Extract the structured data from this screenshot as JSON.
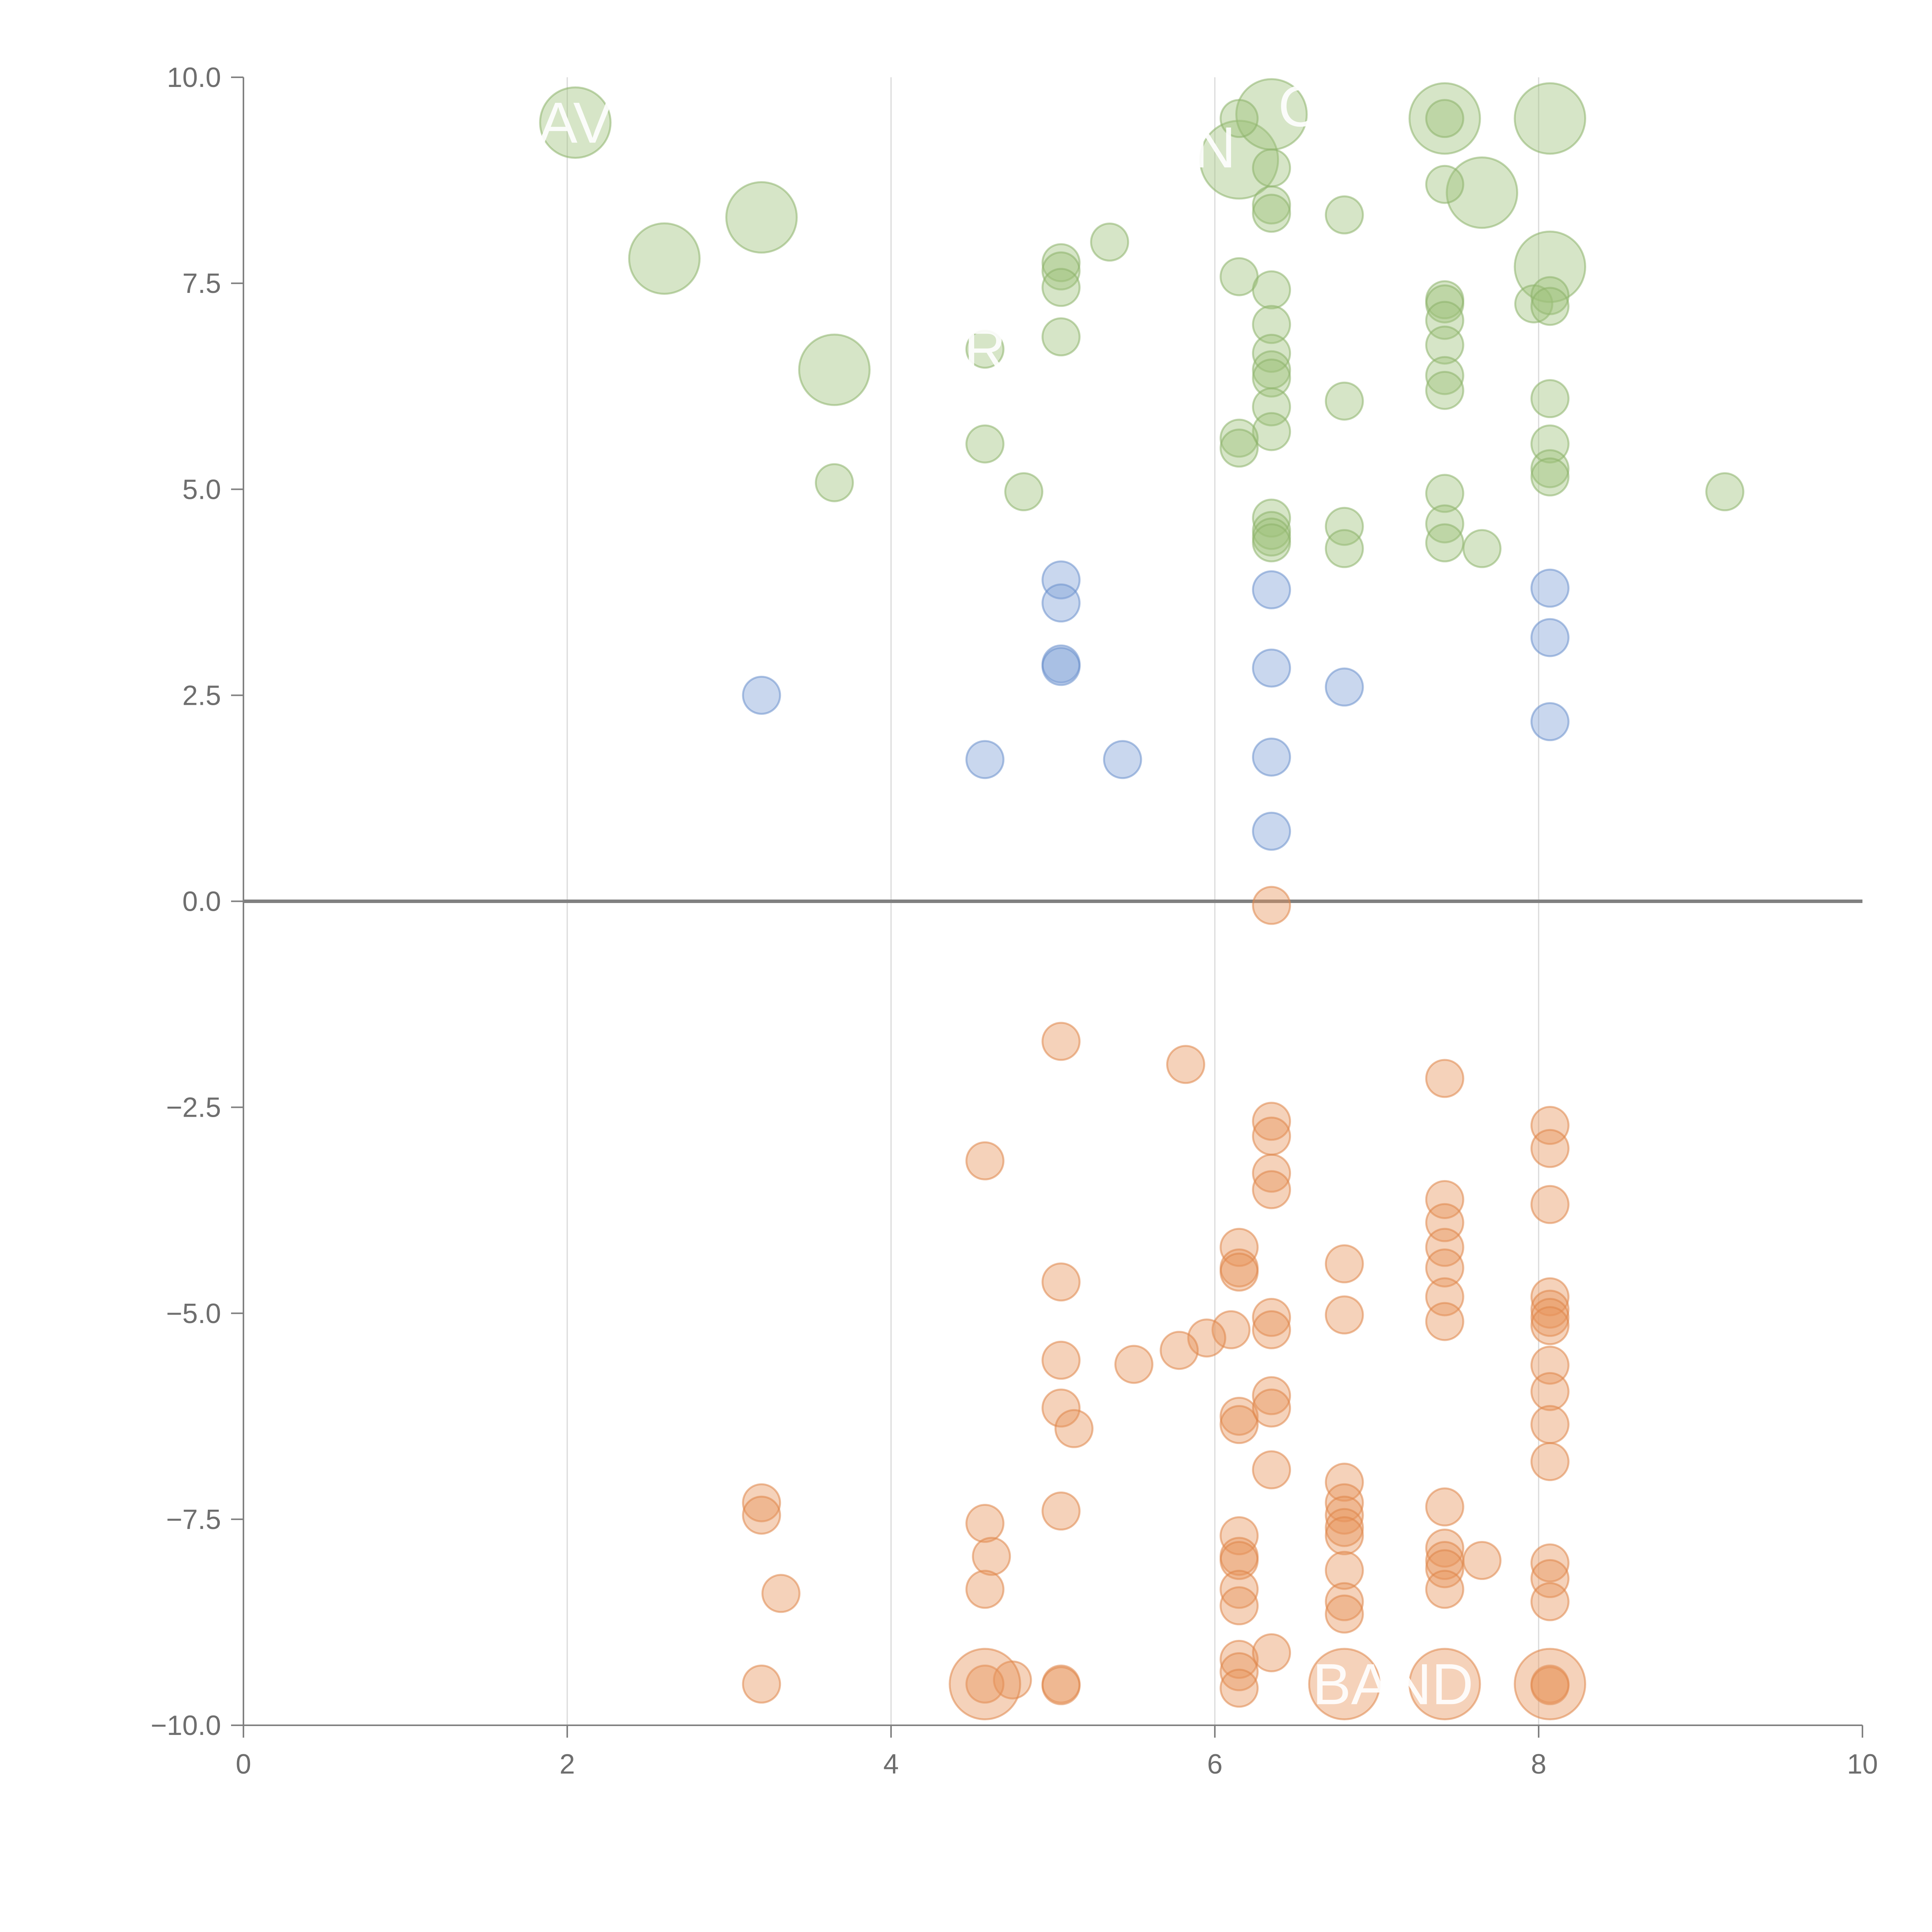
{
  "chart_data": {
    "type": "scatter",
    "title": "",
    "xlabel": "",
    "ylabel": "",
    "xlim": [
      0,
      10
    ],
    "ylim": [
      -10,
      10
    ],
    "x_ticks": [
      0,
      2,
      4,
      6,
      8,
      10
    ],
    "x_tick_labels": [
      "0",
      "2",
      "4",
      "6",
      "8",
      "10"
    ],
    "y_ticks": [
      -10,
      -7.5,
      -5,
      -2.5,
      0,
      2.5,
      5,
      7.5,
      10
    ],
    "y_tick_labels": [
      "−10.0",
      "−7.5",
      "−5.0",
      "−2.5",
      "0.0",
      "2.5",
      "5.0",
      "7.5",
      "10.0"
    ],
    "vertical_gridlines": [
      2,
      4,
      6,
      8
    ],
    "horizontal_reference_line": 0,
    "legend": "none",
    "series": [
      {
        "color": "#9ec27a",
        "stroke": "#8db369",
        "points": [
          [
            2.05,
            9.45,
            1.9
          ],
          [
            2.6,
            7.8,
            1.9
          ],
          [
            3.2,
            8.3,
            1.9
          ],
          [
            3.65,
            6.45,
            1.9
          ],
          [
            6.15,
            9.0,
            2.1
          ],
          [
            6.35,
            9.55,
            1.9
          ],
          [
            7.42,
            9.5,
            1.9
          ],
          [
            7.65,
            8.6,
            1.9
          ],
          [
            8.07,
            9.5,
            1.9
          ],
          [
            8.07,
            7.7,
            1.9
          ],
          [
            6.15,
            9.5,
            1
          ],
          [
            6.35,
            8.9,
            1
          ],
          [
            6.35,
            8.45,
            1
          ],
          [
            6.35,
            8.35,
            1
          ],
          [
            6.8,
            8.33,
            1
          ],
          [
            7.42,
            9.5,
            1
          ],
          [
            7.42,
            8.7,
            1
          ],
          [
            5.05,
            7.75,
            1
          ],
          [
            5.05,
            7.65,
            1
          ],
          [
            5.05,
            7.45,
            1
          ],
          [
            5.35,
            8.0,
            1
          ],
          [
            6.15,
            7.58,
            1
          ],
          [
            6.35,
            7.42,
            1
          ],
          [
            6.35,
            7.0,
            1
          ],
          [
            6.35,
            6.65,
            1
          ],
          [
            6.35,
            6.45,
            1
          ],
          [
            6.35,
            6.35,
            1
          ],
          [
            6.35,
            6.0,
            1
          ],
          [
            6.35,
            5.7,
            1
          ],
          [
            6.15,
            5.62,
            1
          ],
          [
            6.15,
            5.5,
            1
          ],
          [
            6.8,
            6.07,
            1
          ],
          [
            7.42,
            7.3,
            1
          ],
          [
            7.42,
            7.25,
            1
          ],
          [
            7.42,
            7.05,
            1
          ],
          [
            7.42,
            6.75,
            1
          ],
          [
            7.42,
            6.38,
            1
          ],
          [
            7.42,
            6.2,
            1
          ],
          [
            7.97,
            7.25,
            1
          ],
          [
            8.07,
            7.35,
            1
          ],
          [
            8.07,
            7.22,
            1
          ],
          [
            8.07,
            6.1,
            1
          ],
          [
            8.07,
            5.55,
            1
          ],
          [
            8.07,
            5.25,
            1
          ],
          [
            8.07,
            5.15,
            1
          ],
          [
            4.58,
            6.7,
            1
          ],
          [
            5.05,
            6.85,
            1
          ],
          [
            4.58,
            5.55,
            1
          ],
          [
            3.65,
            5.08,
            1
          ],
          [
            4.82,
            4.97,
            1
          ],
          [
            6.35,
            4.65,
            1
          ],
          [
            6.35,
            4.5,
            1
          ],
          [
            6.35,
            4.42,
            1
          ],
          [
            6.35,
            4.35,
            1
          ],
          [
            6.8,
            4.55,
            1
          ],
          [
            6.8,
            4.28,
            1
          ],
          [
            7.42,
            4.95,
            1
          ],
          [
            7.42,
            4.58,
            1
          ],
          [
            7.42,
            4.35,
            1
          ],
          [
            7.65,
            4.28,
            1
          ],
          [
            9.15,
            4.97,
            1
          ]
        ]
      },
      {
        "color": "#7fa0d6",
        "stroke": "#6a8fcc",
        "points": [
          [
            3.2,
            2.5,
            1
          ],
          [
            4.58,
            1.72,
            1
          ],
          [
            5.05,
            3.9,
            1
          ],
          [
            5.05,
            3.62,
            1
          ],
          [
            5.05,
            2.88,
            1
          ],
          [
            5.05,
            2.85,
            1
          ],
          [
            5.43,
            1.72,
            1
          ],
          [
            6.35,
            3.78,
            1
          ],
          [
            6.35,
            2.83,
            1
          ],
          [
            6.35,
            1.75,
            1
          ],
          [
            6.35,
            0.85,
            1
          ],
          [
            6.8,
            2.6,
            1
          ],
          [
            8.07,
            3.8,
            1
          ],
          [
            8.07,
            3.2,
            1
          ],
          [
            8.07,
            2.18,
            1
          ]
        ]
      },
      {
        "color": "#e8935a",
        "stroke": "#df8548",
        "points": [
          [
            6.35,
            -0.05,
            1
          ],
          [
            5.05,
            -1.7,
            1
          ],
          [
            5.82,
            -1.98,
            1
          ],
          [
            7.42,
            -2.15,
            1
          ],
          [
            4.58,
            -3.15,
            1
          ],
          [
            6.35,
            -2.67,
            1
          ],
          [
            6.35,
            -2.85,
            1
          ],
          [
            6.35,
            -3.3,
            1
          ],
          [
            6.35,
            -3.5,
            1
          ],
          [
            8.07,
            -2.72,
            1
          ],
          [
            8.07,
            -3.0,
            1
          ],
          [
            8.07,
            -3.68,
            1
          ],
          [
            7.42,
            -3.62,
            1
          ],
          [
            7.42,
            -3.9,
            1
          ],
          [
            7.42,
            -4.2,
            1
          ],
          [
            7.42,
            -4.45,
            1
          ],
          [
            7.42,
            -4.8,
            1
          ],
          [
            7.42,
            -5.1,
            1
          ],
          [
            6.15,
            -4.2,
            1
          ],
          [
            6.15,
            -4.45,
            1
          ],
          [
            6.15,
            -4.5,
            1
          ],
          [
            6.8,
            -4.4,
            1
          ],
          [
            6.8,
            -5.02,
            1
          ],
          [
            5.05,
            -4.62,
            1
          ],
          [
            6.35,
            -5.05,
            1
          ],
          [
            6.35,
            -5.2,
            1
          ],
          [
            6.1,
            -5.2,
            1
          ],
          [
            5.95,
            -5.3,
            1
          ],
          [
            5.78,
            -5.45,
            1
          ],
          [
            5.5,
            -5.62,
            1
          ],
          [
            5.05,
            -5.57,
            1
          ],
          [
            5.05,
            -6.15,
            1
          ],
          [
            5.13,
            -6.4,
            1
          ],
          [
            6.15,
            -6.25,
            1
          ],
          [
            6.15,
            -6.35,
            1
          ],
          [
            6.35,
            -6.0,
            1
          ],
          [
            6.35,
            -6.15,
            1
          ],
          [
            6.35,
            -6.9,
            1
          ],
          [
            8.07,
            -4.8,
            1
          ],
          [
            8.07,
            -4.95,
            1
          ],
          [
            8.07,
            -5.05,
            1
          ],
          [
            8.07,
            -5.15,
            1
          ],
          [
            8.07,
            -5.63,
            1
          ],
          [
            8.07,
            -5.95,
            1
          ],
          [
            8.07,
            -6.35,
            1
          ],
          [
            8.07,
            -6.8,
            1
          ],
          [
            3.2,
            -7.3,
            1
          ],
          [
            3.2,
            -7.45,
            1
          ],
          [
            3.32,
            -8.4,
            1
          ],
          [
            3.2,
            -9.5,
            1
          ],
          [
            4.58,
            -7.55,
            1
          ],
          [
            4.62,
            -7.95,
            1
          ],
          [
            4.58,
            -8.35,
            1
          ],
          [
            4.75,
            -9.45,
            1
          ],
          [
            5.05,
            -7.4,
            1
          ],
          [
            5.05,
            -9.5,
            1
          ],
          [
            5.05,
            -9.52,
            1
          ],
          [
            6.15,
            -7.7,
            1
          ],
          [
            6.15,
            -7.95,
            1
          ],
          [
            6.15,
            -8.0,
            1
          ],
          [
            6.15,
            -8.35,
            1
          ],
          [
            6.15,
            -8.55,
            1
          ],
          [
            6.15,
            -9.2,
            1
          ],
          [
            6.15,
            -9.35,
            1
          ],
          [
            6.15,
            -9.55,
            1
          ],
          [
            6.35,
            -9.12,
            1
          ],
          [
            6.8,
            -7.05,
            1
          ],
          [
            6.8,
            -7.3,
            1
          ],
          [
            6.8,
            -7.45,
            1
          ],
          [
            6.8,
            -7.6,
            1
          ],
          [
            6.8,
            -7.7,
            1
          ],
          [
            6.8,
            -8.12,
            1
          ],
          [
            6.8,
            -8.5,
            1
          ],
          [
            6.8,
            -8.65,
            1
          ],
          [
            7.42,
            -7.35,
            1
          ],
          [
            7.42,
            -7.85,
            1
          ],
          [
            7.42,
            -8.0,
            1
          ],
          [
            7.42,
            -8.1,
            1
          ],
          [
            7.42,
            -8.35,
            1
          ],
          [
            7.65,
            -8.0,
            1
          ],
          [
            8.07,
            -8.03,
            1
          ],
          [
            8.07,
            -8.22,
            1
          ],
          [
            8.07,
            -8.5,
            1
          ],
          [
            8.07,
            -9.5,
            1
          ],
          [
            8.07,
            -9.52,
            1
          ],
          [
            4.58,
            -9.5,
            1
          ],
          [
            4.58,
            -9.5,
            1.9
          ],
          [
            6.8,
            -9.5,
            1.9
          ],
          [
            7.42,
            -9.5,
            1.9
          ],
          [
            8.07,
            -9.5,
            1.9
          ]
        ]
      }
    ],
    "annotations": [
      {
        "text": "AV",
        "x": 2.05,
        "y": 9.45
      },
      {
        "text": "N",
        "x": 6.0,
        "y": 9.15
      },
      {
        "text": "C",
        "x": 6.52,
        "y": 9.65
      },
      {
        "text": "R",
        "x": 4.58,
        "y": 6.7
      },
      {
        "text": "BAND",
        "x": 7.1,
        "y": -9.5
      }
    ]
  }
}
